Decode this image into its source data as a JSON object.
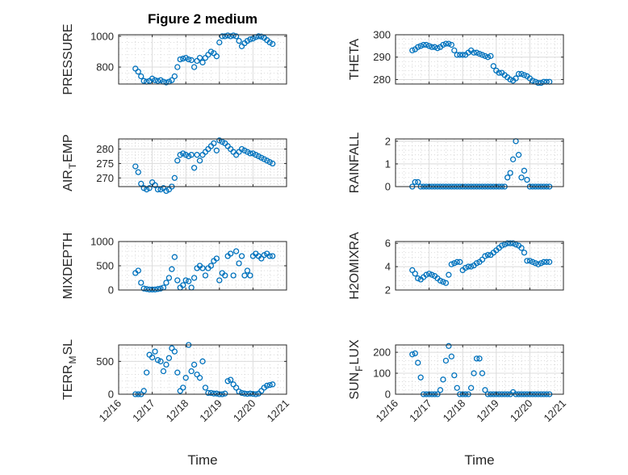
{
  "figure_title": "Figure 2 medium",
  "chart_data": {
    "type": "scatter",
    "x_axis": {
      "label": "Time",
      "start_day": "12/16",
      "first_sample_offset_days": 0.5,
      "sample_step_hours": 2,
      "range_days": [
        0,
        5
      ],
      "tick_labels": [
        "12/16",
        "12/17",
        "12/18",
        "12/19",
        "12/20",
        "12/21"
      ]
    },
    "marker": "circle-open",
    "color": "#0072BD",
    "grid": "major+minor",
    "panels": [
      {
        "ylabel": "PRESSURE",
        "ylim": [
          690,
          1010
        ],
        "yticks": [
          800,
          1000
        ],
        "values": [
          790,
          770,
          740,
          710,
          705,
          710,
          725,
          715,
          710,
          715,
          705,
          700,
          705,
          715,
          740,
          800,
          850,
          855,
          860,
          850,
          845,
          800,
          840,
          860,
          830,
          860,
          880,
          900,
          890,
          870,
          960,
          1000,
          1000,
          1005,
          1000,
          1005,
          1000,
          970,
          935,
          955,
          970,
          980,
          985,
          995,
          1000,
          998,
          990,
          975,
          960,
          950
        ]
      },
      {
        "ylabel": "THETA",
        "ylim": [
          278,
          300
        ],
        "yticks": [
          280,
          290,
          300
        ],
        "values": [
          293,
          293.5,
          294.5,
          295,
          295.5,
          295.5,
          295,
          294.5,
          294.5,
          294,
          294.5,
          295.5,
          296,
          296,
          295.5,
          293,
          291,
          291,
          291,
          291,
          292,
          293,
          292,
          292,
          291.5,
          291,
          290.5,
          290,
          290.5,
          286,
          284,
          283,
          283,
          282,
          281,
          280,
          279.5,
          280.5,
          282.5,
          282.5,
          282,
          281.5,
          280.5,
          279.5,
          279,
          278.5,
          278.5,
          279,
          279,
          279
        ]
      },
      {
        "ylabel": "AIR_TEMP",
        "ylim": [
          267,
          283.5
        ],
        "yticks": [
          270,
          275,
          280
        ],
        "values": [
          274,
          272,
          268,
          266.5,
          266,
          266.5,
          268.5,
          267.5,
          266,
          266,
          266.5,
          265.5,
          266,
          267,
          270,
          276,
          278,
          278.5,
          278,
          277.5,
          278,
          273.5,
          278,
          276,
          278,
          279,
          280,
          281,
          282,
          279.5,
          283,
          282.5,
          282,
          281,
          280,
          279,
          278,
          279,
          280,
          279.5,
          279,
          278.5,
          278.5,
          278,
          277.5,
          277,
          276.5,
          276,
          275.5,
          275
        ]
      },
      {
        "ylabel": "RAINFALL",
        "ylim": [
          0,
          2.1
        ],
        "yticks": [
          0,
          1,
          2
        ],
        "values": [
          0,
          0.2,
          0.2,
          0,
          0,
          0,
          0,
          0,
          0,
          0,
          0,
          0,
          0,
          0,
          0,
          0,
          0,
          0,
          0,
          0,
          0,
          0,
          0,
          0,
          0,
          0,
          0,
          0,
          0,
          0,
          0,
          0,
          0,
          0,
          0.4,
          0.6,
          1.2,
          2.0,
          1.4,
          0.4,
          0.7,
          0.3,
          0,
          0,
          0,
          0,
          0,
          0,
          0,
          0
        ]
      },
      {
        "ylabel": "MIXDEPTH",
        "ylim": [
          0,
          1000
        ],
        "yticks": [
          0,
          500,
          1000
        ],
        "values": [
          350,
          400,
          150,
          30,
          20,
          10,
          10,
          10,
          20,
          30,
          50,
          150,
          250,
          430,
          680,
          200,
          50,
          100,
          200,
          180,
          50,
          250,
          450,
          500,
          450,
          300,
          450,
          500,
          600,
          650,
          200,
          350,
          300,
          700,
          750,
          300,
          800,
          550,
          700,
          300,
          400,
          300,
          700,
          750,
          700,
          650,
          720,
          750,
          700,
          700
        ]
      },
      {
        "ylabel": "H2OMIXRA",
        "ylim": [
          2,
          6.15
        ],
        "yticks": [
          2,
          4,
          6
        ],
        "values": [
          3.7,
          3.4,
          3.0,
          2.9,
          3.1,
          3.3,
          3.4,
          3.3,
          3.2,
          3.0,
          2.8,
          2.7,
          2.6,
          3.3,
          4.2,
          4.3,
          4.4,
          4.4,
          3.7,
          3.9,
          4.0,
          4.0,
          4.1,
          4.3,
          4.4,
          4.6,
          4.9,
          5.0,
          5.0,
          5.2,
          5.4,
          5.6,
          5.8,
          5.9,
          6.0,
          6.0,
          6.0,
          5.9,
          5.8,
          5.6,
          5.2,
          4.5,
          4.5,
          4.4,
          4.3,
          4.2,
          4.3,
          4.4,
          4.4,
          4.4
        ]
      },
      {
        "ylabel": "TERR_MSL",
        "ylim": [
          0,
          750
        ],
        "yticks": [
          0,
          500
        ],
        "values": [
          0,
          0,
          0,
          50,
          330,
          600,
          560,
          650,
          520,
          500,
          350,
          450,
          550,
          700,
          650,
          330,
          50,
          100,
          250,
          750,
          350,
          450,
          300,
          250,
          500,
          100,
          20,
          20,
          10,
          10,
          0,
          0,
          10,
          200,
          220,
          150,
          100,
          40,
          20,
          10,
          5,
          10,
          5,
          0,
          10,
          50,
          100,
          130,
          140,
          150
        ]
      },
      {
        "ylabel": "SUN_FLUX",
        "ylim": [
          0,
          235
        ],
        "yticks": [
          0,
          100,
          200
        ],
        "values": [
          190,
          195,
          150,
          80,
          0,
          0,
          0,
          0,
          0,
          0,
          20,
          70,
          160,
          230,
          180,
          90,
          30,
          0,
          0,
          0,
          0,
          30,
          100,
          170,
          170,
          100,
          20,
          0,
          0,
          0,
          0,
          0,
          0,
          0,
          0,
          0,
          10,
          0,
          0,
          0,
          0,
          0,
          0,
          0,
          0,
          0,
          0,
          0,
          0,
          0
        ]
      }
    ]
  }
}
